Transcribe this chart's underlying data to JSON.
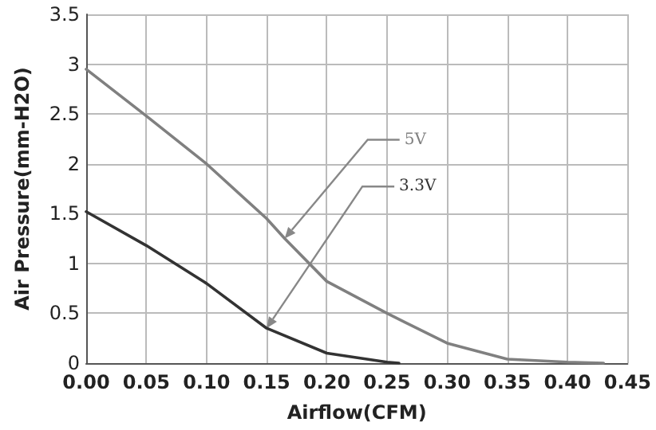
{
  "chart_data": {
    "type": "line",
    "xlabel": "Airflow(CFM)",
    "ylabel": "Air Pressure(mm-H2O)",
    "xlim": [
      0,
      0.45
    ],
    "xticks": [
      {
        "value": 0,
        "label": "0.00"
      },
      {
        "value": 0.05,
        "label": "0.05"
      },
      {
        "value": 0.1,
        "label": "0.10"
      },
      {
        "value": 0.15,
        "label": "0.15"
      },
      {
        "value": 0.2,
        "label": "0.20"
      },
      {
        "value": 0.25,
        "label": "0.25"
      },
      {
        "value": 0.3,
        "label": "0.30"
      },
      {
        "value": 0.35,
        "label": "0.35"
      },
      {
        "value": 0.4,
        "label": "0.40"
      },
      {
        "value": 0.45,
        "label": "0.45"
      }
    ],
    "ylim": [
      0,
      3.5
    ],
    "yticks": [
      0,
      0.5,
      1,
      1.5,
      2,
      2.5,
      3,
      3.5
    ],
    "grid": true,
    "legend": false,
    "marker": "none",
    "line_style": "solid",
    "series": [
      {
        "name": "5V",
        "color": "#808080",
        "x": [
          0,
          0.05,
          0.1,
          0.15,
          0.165,
          0.2,
          0.25,
          0.3,
          0.35,
          0.4,
          0.43
        ],
        "values": [
          2.95,
          2.48,
          2.0,
          1.45,
          1.25,
          0.82,
          0.5,
          0.2,
          0.04,
          0.01,
          0
        ]
      },
      {
        "name": "3.3V",
        "color": "#333333",
        "x": [
          0,
          0.05,
          0.1,
          0.15,
          0.2,
          0.25,
          0.26
        ],
        "values": [
          1.52,
          1.18,
          0.8,
          0.35,
          0.1,
          0.01,
          0
        ]
      }
    ]
  }
}
